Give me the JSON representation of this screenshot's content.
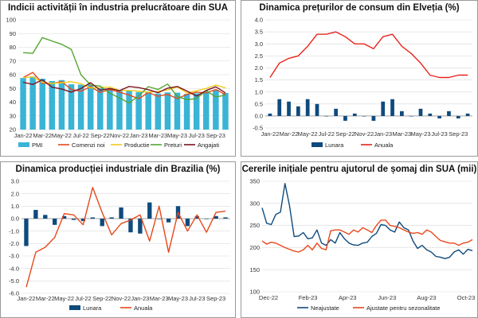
{
  "chart_data": [
    {
      "id": "c1",
      "type": "bar",
      "title": "Indicii activității în industria prelucrătoare din SUA",
      "ylim": [
        20,
        100
      ],
      "yticks": [
        20,
        30,
        40,
        50,
        60,
        70,
        80,
        90,
        100
      ],
      "categories": [
        "Jan-22",
        "Feb-22",
        "Mar-22",
        "Apr-22",
        "May-22",
        "Jun-22",
        "Jul-22",
        "Aug-22",
        "Sep-22",
        "Oct-22",
        "Nov-22",
        "Dec-22",
        "Jan-23",
        "Feb-23",
        "Mar-23",
        "Apr-23",
        "May-23",
        "Jun-23",
        "Jul-23",
        "Aug-23",
        "Sep-23",
        "Oct-23"
      ],
      "xtick_labels": [
        "Jan-22",
        "Mar-22",
        "May-22",
        "Jul-22",
        "Sep-22",
        "Nov-22",
        "Jan-23",
        "Mar-23",
        "May-23",
        "Jul-23",
        "Sep-23"
      ],
      "series": [
        {
          "name": "PMI",
          "kind": "bar",
          "color": "#3ab4d6",
          "values": [
            57.6,
            58.6,
            57.1,
            55.4,
            56.1,
            53.0,
            52.8,
            52.8,
            50.9,
            50.2,
            49.0,
            48.4,
            47.4,
            47.7,
            46.3,
            47.1,
            46.9,
            46.0,
            46.4,
            47.6,
            49.0,
            46.7
          ]
        },
        {
          "name": "Comenzi noi",
          "kind": "line",
          "color": "#e8481b",
          "values": [
            57.9,
            61.7,
            53.8,
            53.5,
            55.1,
            49.2,
            48.0,
            51.3,
            47.1,
            49.2,
            47.2,
            45.2,
            42.5,
            47.0,
            44.3,
            45.7,
            42.6,
            45.6,
            47.3,
            46.8,
            49.2,
            45.5
          ]
        },
        {
          "name": "Productie",
          "kind": "line",
          "color": "#f2cb1d",
          "values": [
            57.8,
            58.5,
            54.5,
            53.6,
            54.2,
            54.9,
            53.5,
            50.4,
            50.6,
            51.1,
            48.5,
            48.5,
            48.0,
            47.3,
            47.8,
            48.9,
            51.1,
            46.7,
            48.3,
            50.0,
            52.5,
            50.4
          ]
        },
        {
          "name": "Preturi",
          "kind": "line",
          "color": "#55a630",
          "values": [
            76.1,
            75.6,
            87.1,
            84.6,
            82.2,
            78.5,
            60.0,
            52.5,
            51.7,
            46.6,
            43.0,
            39.4,
            44.5,
            51.3,
            49.2,
            53.2,
            44.2,
            41.8,
            42.6,
            48.4,
            43.8,
            45.1
          ]
        },
        {
          "name": "Angajati",
          "kind": "line",
          "color": "#7a1322",
          "values": [
            54.5,
            52.9,
            56.3,
            50.9,
            49.6,
            47.3,
            49.9,
            54.2,
            48.7,
            50.0,
            48.4,
            51.4,
            50.6,
            49.1,
            46.9,
            50.2,
            51.4,
            48.1,
            44.4,
            48.5,
            51.2,
            46.8
          ]
        }
      ]
    },
    {
      "id": "c2",
      "type": "bar",
      "title": "Dinamica prețurilor de consum din Elveția (%)",
      "ylim": [
        -0.5,
        4.0
      ],
      "yticks": [
        -0.5,
        0.0,
        0.5,
        1.0,
        1.5,
        2.0,
        2.5,
        3.0,
        3.5,
        4.0
      ],
      "ytick_labels": [
        "-0.5",
        "0.0",
        "0.5",
        "1.0",
        "1.5",
        "2.0",
        "2.5",
        "3.0",
        "3.5",
        "4.0"
      ],
      "categories": [
        "Jan-22",
        "Feb-22",
        "Mar-22",
        "Apr-22",
        "May-22",
        "Jun-22",
        "Jul-22",
        "Aug-22",
        "Sep-22",
        "Oct-22",
        "Nov-22",
        "Dec-22",
        "Jan-23",
        "Feb-23",
        "Mar-23",
        "Apr-23",
        "May-23",
        "Jun-23",
        "Jul-23",
        "Aug-23",
        "Sep-23",
        "Oct-23"
      ],
      "xtick_labels": [
        "Jan-22",
        "Mar-22",
        "May-22",
        "Jul-22",
        "Sep-22",
        "Nov-22",
        "Jan-23",
        "Mar-23",
        "May-23",
        "Jul-23",
        "Sep-23"
      ],
      "series": [
        {
          "name": "Lunara",
          "kind": "bar",
          "color": "#0f4a7d",
          "values": [
            0.1,
            0.7,
            0.6,
            0.4,
            0.7,
            0.5,
            0.0,
            0.3,
            -0.2,
            0.1,
            0.0,
            -0.2,
            0.6,
            0.7,
            0.2,
            0.0,
            0.3,
            0.1,
            -0.1,
            0.2,
            -0.1,
            0.1
          ]
        },
        {
          "name": "Anuala",
          "kind": "line",
          "color": "#e8231b",
          "values": [
            1.6,
            2.2,
            2.4,
            2.5,
            2.9,
            3.4,
            3.4,
            3.5,
            3.3,
            3.0,
            3.0,
            2.8,
            3.3,
            3.4,
            2.9,
            2.6,
            2.2,
            1.7,
            1.6,
            1.6,
            1.7,
            1.7
          ]
        }
      ]
    },
    {
      "id": "c3",
      "type": "bar",
      "title": "Dinamica producției industriale din Brazilia (%)",
      "ylim": [
        -6.0,
        3.0
      ],
      "yticks": [
        -6.0,
        -5.0,
        -4.0,
        -3.0,
        -2.0,
        -1.0,
        0.0,
        1.0,
        2.0,
        3.0
      ],
      "ytick_labels": [
        "-6.0",
        "-5.0",
        "-4.0",
        "-3.0",
        "-2.0",
        "-1.0",
        "0.0",
        "1.0",
        "2.0",
        "3.0"
      ],
      "categories": [
        "Jan-22",
        "Feb-22",
        "Mar-22",
        "Apr-22",
        "May-22",
        "Jun-22",
        "Jul-22",
        "Aug-22",
        "Sep-22",
        "Oct-22",
        "Nov-22",
        "Dec-22",
        "Jan-23",
        "Feb-23",
        "Mar-23",
        "Apr-23",
        "May-23",
        "Jun-23",
        "Jul-23",
        "Aug-23",
        "Sep-23",
        "Oct-23"
      ],
      "xtick_labels": [
        "Jan-22",
        "Mar-22",
        "May-22",
        "Jul-22",
        "Sep-22",
        "Nov-22",
        "Jan-23",
        "Mar-23",
        "May-23",
        "Jul-23",
        "Sep-23"
      ],
      "series": [
        {
          "name": "Lunara",
          "kind": "bar",
          "color": "#0f4a7d",
          "values": [
            -2.2,
            0.7,
            0.3,
            -0.5,
            0.2,
            -0.1,
            -0.2,
            0.1,
            -0.6,
            0.1,
            0.9,
            -1.1,
            -1.2,
            1.3,
            0.0,
            -0.3,
            1.0,
            -0.6,
            0.2,
            0.0,
            0.2,
            0.1
          ]
        },
        {
          "name": "Anuala",
          "kind": "line",
          "color": "#e8481b",
          "values": [
            -5.5,
            -2.7,
            -2.3,
            -1.5,
            0.4,
            0.3,
            -0.5,
            2.5,
            0.5,
            -1.3,
            -0.4,
            -0.1,
            0.3,
            -1.8,
            1.0,
            -2.7,
            0.5,
            -1.0,
            0.3,
            -1.1,
            0.5,
            0.6
          ]
        }
      ]
    },
    {
      "id": "c4",
      "type": "line",
      "title": "Cererile inițiale pentru ajutorul de șomaj din SUA (mii)",
      "ylim": [
        100,
        350
      ],
      "yticks": [
        100,
        150,
        200,
        250,
        300,
        350
      ],
      "xtick_labels": [
        "Dec-22",
        "Feb-23",
        "Apr-23",
        "Jun-23",
        "Aug-23",
        "Oct-23"
      ],
      "series": [
        {
          "name": "Neajustate",
          "color": "#0f4a7d",
          "values": [
            290,
            255,
            252,
            275,
            280,
            345,
            295,
            225,
            226,
            234,
            220,
            222,
            240,
            210,
            205,
            218,
            210,
            234,
            220,
            210,
            206,
            205,
            210,
            212,
            225,
            232,
            252,
            250,
            240,
            235,
            258,
            245,
            240,
            215,
            198,
            205,
            195,
            190,
            180,
            178,
            175,
            178,
            190,
            195,
            185,
            196,
            193
          ]
        },
        {
          "name": "Ajustate pentru sezonalitate",
          "color": "#e8481b",
          "values": [
            215,
            208,
            212,
            210,
            205,
            200,
            196,
            192,
            190,
            195,
            205,
            195,
            210,
            198,
            195,
            238,
            240,
            240,
            235,
            230,
            240,
            235,
            245,
            240,
            234,
            250,
            262,
            262,
            250,
            248,
            245,
            240,
            235,
            232,
            234,
            230,
            240,
            235,
            225,
            216,
            213,
            210,
            210,
            205,
            210,
            212,
            218
          ]
        }
      ]
    }
  ]
}
